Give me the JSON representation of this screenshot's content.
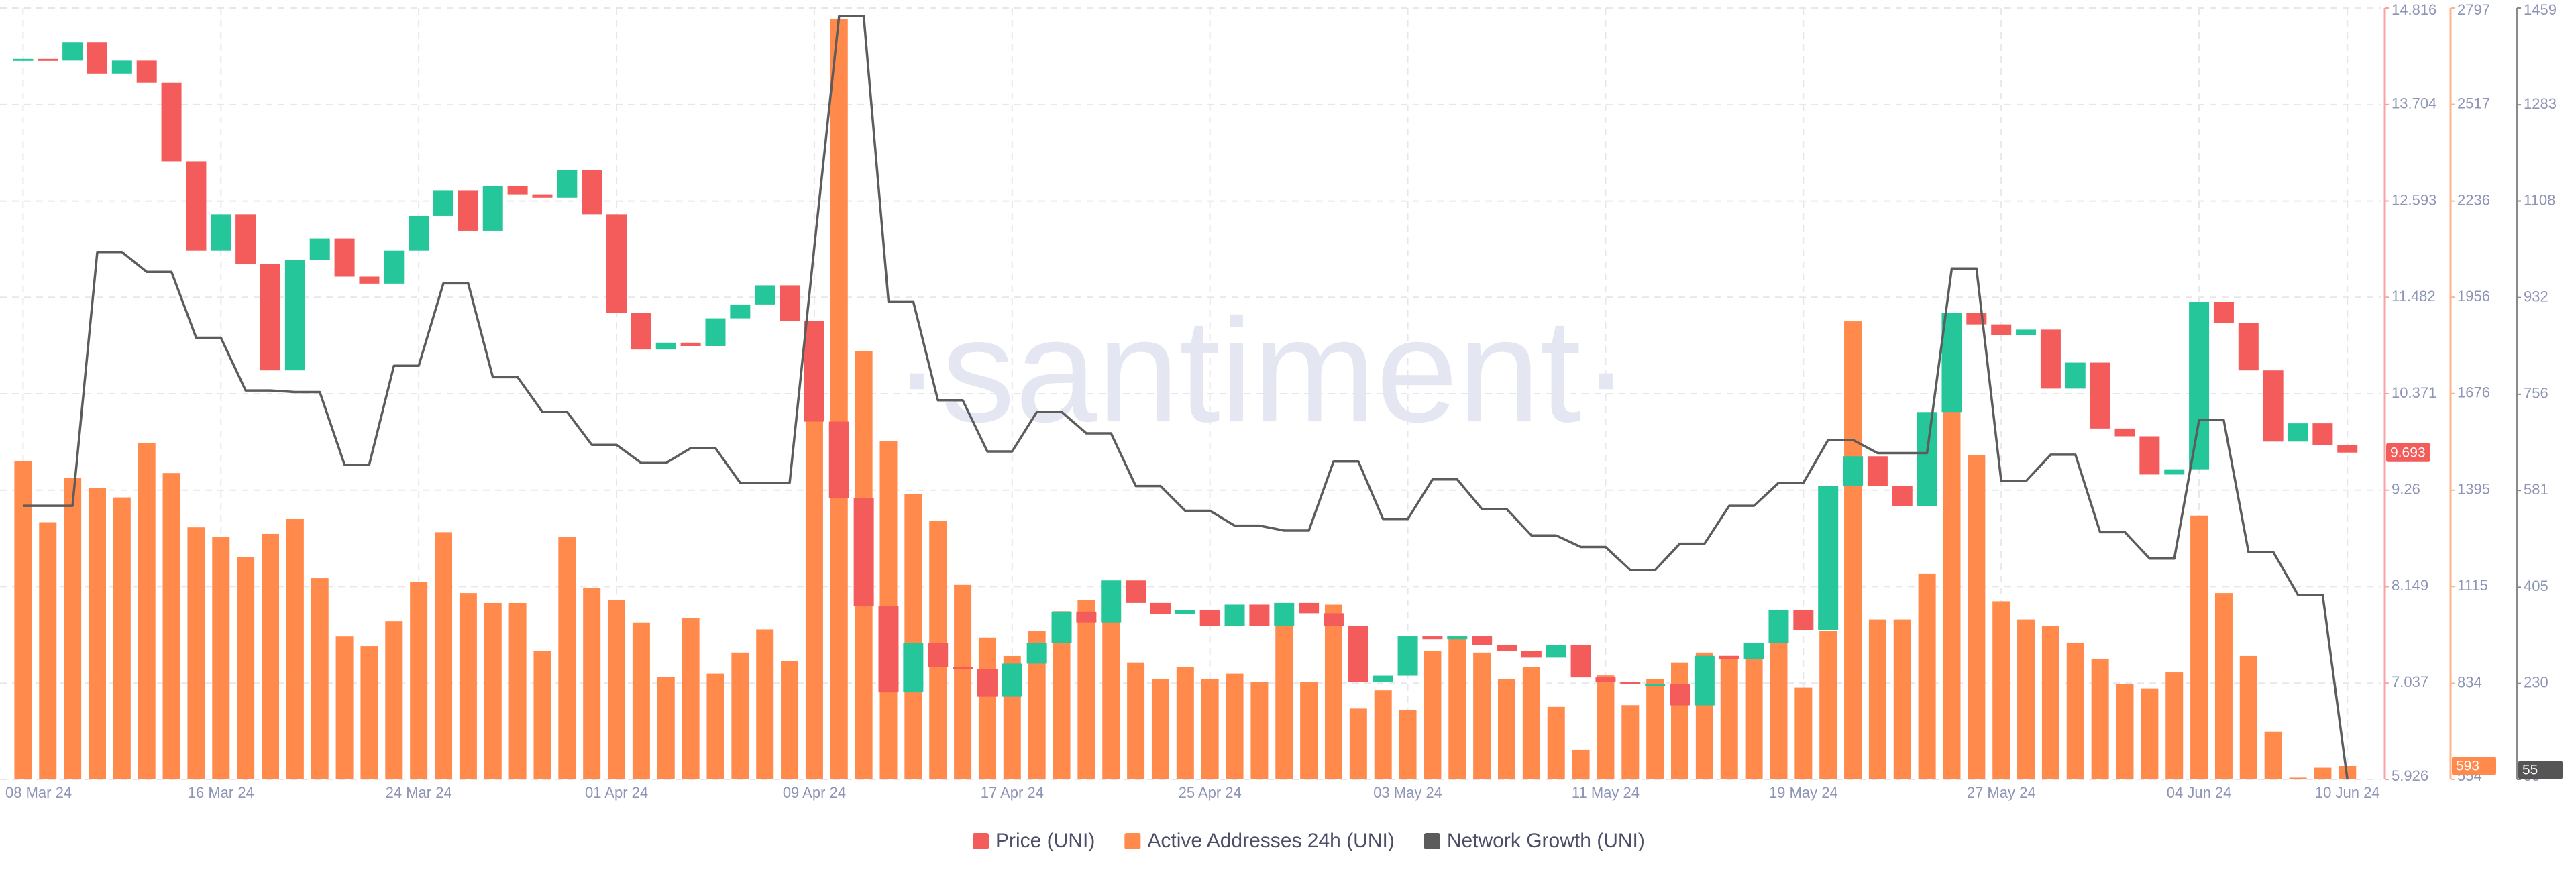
{
  "chart_data": {
    "type": "combo",
    "watermark": "·santiment·",
    "grid": true,
    "categories": [
      "08 Mar 24",
      null,
      null,
      null,
      null,
      null,
      null,
      null,
      "16 Mar 24",
      null,
      null,
      null,
      null,
      null,
      null,
      null,
      "24 Mar 24",
      null,
      null,
      null,
      null,
      null,
      null,
      null,
      "01 Apr 24",
      null,
      null,
      null,
      null,
      null,
      null,
      null,
      "09 Apr 24",
      null,
      null,
      null,
      null,
      null,
      null,
      null,
      "17 Apr 24",
      null,
      null,
      null,
      null,
      null,
      null,
      null,
      "25 Apr 24",
      null,
      null,
      null,
      null,
      null,
      null,
      null,
      "03 May 24",
      null,
      null,
      null,
      null,
      null,
      null,
      null,
      "11 May 24",
      null,
      null,
      null,
      null,
      null,
      null,
      null,
      "19 May 24",
      null,
      null,
      null,
      null,
      null,
      null,
      null,
      "27 May 24",
      null,
      null,
      null,
      null,
      null,
      null,
      null,
      "04 Jun 24",
      null,
      null,
      null,
      null,
      null,
      "10 Jun 24"
    ],
    "ylim": [
      5.926,
      14.816
    ],
    "yticks": [
      5.926,
      7.037,
      8.149,
      9.26,
      10.371,
      11.482,
      12.593,
      13.704,
      14.816
    ],
    "y2lim": [
      554,
      2797
    ],
    "y2ticks": [
      554,
      834,
      1115,
      1395,
      1676,
      1956,
      2236,
      2517,
      2797
    ],
    "y3lim": [
      55,
      1459
    ],
    "y3ticks": [
      55,
      230,
      405,
      581,
      756,
      932,
      1108,
      1283,
      1459
    ],
    "series": [
      {
        "name": "Price (UNI)",
        "type": "candlestick",
        "axis": "y",
        "color": "#f45b5b",
        "up_color": "#26c69b",
        "open": [
          14.23,
          14.23,
          14.21,
          14.42,
          14.06,
          14.21,
          13.96,
          13.05,
          12.02,
          12.44,
          11.87,
          10.64,
          11.91,
          12.16,
          11.72,
          11.64,
          12.02,
          12.42,
          12.71,
          12.25,
          12.76,
          12.67,
          12.63,
          12.95,
          12.44,
          11.3,
          10.88,
          10.96,
          10.92,
          11.24,
          11.4,
          11.62,
          11.21,
          10.05,
          9.17,
          7.92,
          6.93,
          7.5,
          7.22,
          7.2,
          6.88,
          7.26,
          7.5,
          7.86,
          7.73,
          8.22,
          7.96,
          7.83,
          7.88,
          7.69,
          7.94,
          7.69,
          7.96,
          7.84,
          7.69,
          7.05,
          7.12,
          7.58,
          7.54,
          7.58,
          7.48,
          7.41,
          7.33,
          7.48,
          7.1,
          7.05,
          7.03,
          7.03,
          6.78,
          7.35,
          7.31,
          7.5,
          7.88,
          7.65,
          9.31,
          9.65,
          9.31,
          9.08,
          10.16,
          11.3,
          11.17,
          11.05,
          11.11,
          10.43,
          10.73,
          9.97,
          9.88,
          9.44,
          9.5,
          11.43,
          11.19,
          10.64,
          9.82,
          10.03,
          9.78
        ],
        "close": [
          14.23,
          14.21,
          14.42,
          14.06,
          14.21,
          13.96,
          13.05,
          12.02,
          12.44,
          11.87,
          10.64,
          11.91,
          12.16,
          11.72,
          11.64,
          12.02,
          12.42,
          12.71,
          12.25,
          12.76,
          12.67,
          12.63,
          12.95,
          12.44,
          11.3,
          10.88,
          10.96,
          10.92,
          11.24,
          11.4,
          11.62,
          11.21,
          10.05,
          9.17,
          7.92,
          6.93,
          7.5,
          7.22,
          7.2,
          6.88,
          7.26,
          7.5,
          7.86,
          7.73,
          8.22,
          7.96,
          7.83,
          7.88,
          7.69,
          7.94,
          7.69,
          7.96,
          7.84,
          7.69,
          7.05,
          7.12,
          7.58,
          7.54,
          7.58,
          7.48,
          7.41,
          7.33,
          7.48,
          7.1,
          7.05,
          7.03,
          7.03,
          6.78,
          7.35,
          7.31,
          7.5,
          7.88,
          7.65,
          9.31,
          9.65,
          9.31,
          9.08,
          10.16,
          11.3,
          11.17,
          11.05,
          11.11,
          10.43,
          10.73,
          9.97,
          9.88,
          9.44,
          9.5,
          11.43,
          11.19,
          10.64,
          9.82,
          10.03,
          9.78,
          9.693
        ]
      },
      {
        "name": "Active Addresses 24h (UNI)",
        "type": "bar",
        "axis": "y2",
        "color": "#ff8a4c",
        "values": [
          1479,
          1302,
          1431,
          1402,
          1374,
          1532,
          1445,
          1287,
          1259,
          1201,
          1268,
          1311,
          1139,
          971,
          942,
          1014,
          1129,
          1273,
          1096,
          1067,
          1067,
          928,
          1259,
          1110,
          1076,
          1009,
          851,
          1024,
          861,
          923,
          990,
          899,
          1886,
          2764,
          1800,
          1537,
          1383,
          1306,
          1120,
          966,
          913,
          985,
          1043,
          1076,
          1014,
          894,
          846,
          880,
          846,
          861,
          837,
          1057,
          837,
          1062,
          760,
          813,
          755,
          928,
          966,
          923,
          846,
          880,
          765,
          640,
          856,
          770,
          846,
          894,
          923,
          913,
          952,
          966,
          822,
          985,
          1886,
          1019,
          1019,
          1153,
          1628,
          1498,
          1072,
          1019,
          1000,
          952,
          904,
          832,
          818,
          866,
          1321,
          1096,
          913,
          693,
          559,
          588,
          593
        ]
      },
      {
        "name": "Network Growth (UNI)",
        "type": "line",
        "axis": "y3",
        "color": "#5c5c5c",
        "values": [
          553,
          553,
          553,
          1015,
          1015,
          979,
          979,
          859,
          859,
          763,
          763,
          760,
          760,
          628,
          628,
          808,
          808,
          958,
          958,
          787,
          787,
          724,
          724,
          664,
          664,
          631,
          631,
          658,
          658,
          595,
          595,
          595,
          1024,
          1444,
          1444,
          925,
          925,
          745,
          745,
          652,
          652,
          724,
          724,
          685,
          685,
          589,
          589,
          544,
          544,
          517,
          517,
          508,
          508,
          634,
          634,
          529,
          529,
          601,
          601,
          547,
          547,
          499,
          499,
          478,
          478,
          436,
          436,
          484,
          484,
          553,
          553,
          595,
          595,
          673,
          673,
          649,
          649,
          649,
          985,
          985,
          598,
          598,
          646,
          646,
          505,
          505,
          457,
          457,
          709,
          709,
          469,
          469,
          391,
          391,
          55
        ]
      }
    ]
  }
}
